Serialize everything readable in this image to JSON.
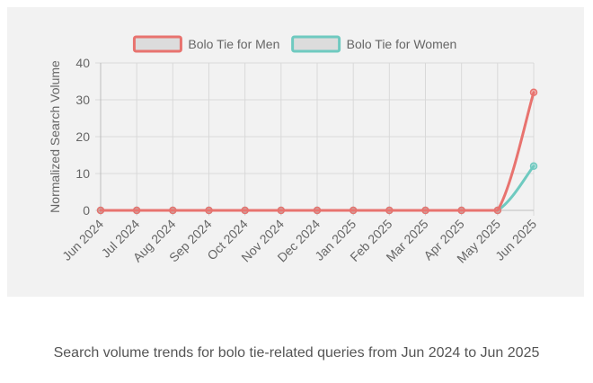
{
  "caption": "Search volume trends for bolo tie-related queries from Jun 2024 to Jun 2025",
  "chart_data": {
    "type": "line",
    "title": "",
    "xlabel": "",
    "ylabel": "Normalized Search Volume",
    "categories": [
      "Jun 2024",
      "Jul 2024",
      "Aug 2024",
      "Sep 2024",
      "Oct 2024",
      "Nov 2024",
      "Dec 2024",
      "Jan 2025",
      "Feb 2025",
      "Mar 2025",
      "Apr 2025",
      "May 2025",
      "Jun 2025"
    ],
    "ylim": [
      0,
      40
    ],
    "yticks": [
      0,
      10,
      20,
      30,
      40
    ],
    "grid": true,
    "legend_position": "top",
    "series": [
      {
        "name": "Bolo Tie for Men",
        "color": "#e8736f",
        "values": [
          0,
          0,
          0,
          0,
          0,
          0,
          0,
          0,
          0,
          0,
          0,
          0,
          32
        ]
      },
      {
        "name": "Bolo Tie for Women",
        "color": "#6fcac0",
        "values": [
          0,
          0,
          0,
          0,
          0,
          0,
          0,
          0,
          0,
          0,
          0,
          0,
          12
        ]
      }
    ]
  }
}
